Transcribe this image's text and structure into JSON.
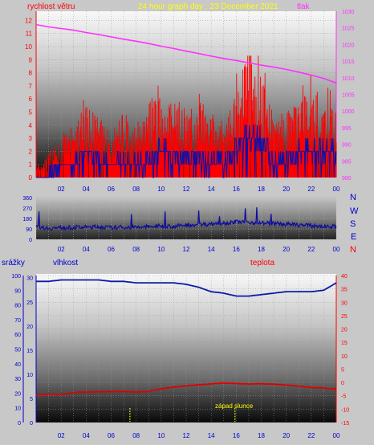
{
  "header": {
    "title": "24 hour graph day : 23 December 2021",
    "wind_label": "rychlost větru",
    "pressure_label": "tlak"
  },
  "middle": {
    "compass": [
      "N",
      "W",
      "S",
      "E",
      "N"
    ]
  },
  "bottom": {
    "rain_label": "srážky",
    "humidity_label": "vlhkost",
    "temp_label": "teplota",
    "sunset_label": "západ slunce"
  },
  "colors": {
    "wind": "#ff0000",
    "wind_avg": "#1010a8",
    "pressure": "#ff30ff",
    "direction": "#0c0ca0",
    "humidity": "#0c1aa8",
    "temperature": "#e00000",
    "marker": "#ffff00",
    "title": "#ffff00",
    "axis_text": "#0000cc"
  },
  "chart_data": [
    {
      "type": "line",
      "title": "24 hour graph day : 23 December 2021",
      "x_ticks": [
        "02",
        "04",
        "06",
        "08",
        "10",
        "12",
        "14",
        "16",
        "18",
        "20",
        "22",
        "00"
      ],
      "y_left": {
        "label": "rychlost větru",
        "ticks": [
          0,
          1,
          2,
          3,
          4,
          5,
          6,
          7,
          8,
          9,
          10,
          11,
          12
        ],
        "ylim": [
          0,
          12.7
        ]
      },
      "y_right": {
        "label": "tlak",
        "ticks": [
          980,
          985,
          990,
          995,
          1000,
          1005,
          1010,
          1015,
          1020,
          1025,
          1030
        ],
        "ylim": [
          980,
          1030
        ]
      },
      "x": [
        0,
        1,
        2,
        3,
        4,
        5,
        6,
        7,
        8,
        9,
        10,
        11,
        12,
        13,
        14,
        15,
        16,
        17,
        18,
        19,
        20,
        21,
        22,
        23,
        24
      ],
      "series": [
        {
          "name": "tlak",
          "axis": "right",
          "values": [
            1026,
            1025.3,
            1024.8,
            1024.3,
            1023.6,
            1023,
            1022.3,
            1021.6,
            1021,
            1020.3,
            1019.5,
            1018.8,
            1018,
            1017.3,
            1016.5,
            1015.8,
            1015.2,
            1014.5,
            1013.8,
            1013.2,
            1012.5,
            1011.7,
            1010.8,
            1009.8,
            1008.4
          ]
        },
        {
          "name": "rychlost větru",
          "axis": "left",
          "values": [
            0.6,
            1.4,
            2.2,
            2.6,
            4.3,
            3.6,
            2.2,
            3.3,
            2.7,
            3.7,
            5.0,
            4.2,
            3.4,
            4.3,
            3.6,
            3.1,
            5.2,
            8.5,
            6.2,
            3.3,
            3.2,
            4.4,
            5.3,
            4.8,
            4.1
          ]
        },
        {
          "name": "průměrná rychlost",
          "axis": "left",
          "values": [
            0.0,
            0.4,
            0.8,
            1.1,
            1.9,
            1.5,
            1.0,
            1.3,
            1.1,
            1.5,
            2.0,
            1.8,
            1.4,
            1.8,
            1.4,
            1.3,
            2.3,
            3.3,
            2.6,
            1.4,
            1.3,
            1.8,
            2.2,
            2.0,
            1.8
          ]
        }
      ]
    },
    {
      "type": "line",
      "x_ticks": [
        "02",
        "04",
        "06",
        "08",
        "10",
        "12",
        "14",
        "16",
        "18",
        "20",
        "22",
        "00"
      ],
      "y_left": {
        "ticks": [
          0,
          90,
          180,
          270,
          360
        ],
        "ylim": [
          0,
          360
        ]
      },
      "x": [
        0,
        1,
        2,
        3,
        4,
        5,
        6,
        7,
        8,
        9,
        10,
        11,
        12,
        13,
        14,
        15,
        16,
        17,
        18,
        19,
        20,
        21,
        22,
        23,
        24
      ],
      "series": [
        {
          "name": "směr větru",
          "values": [
            110,
            95,
            100,
            102,
            105,
            108,
            100,
            105,
            102,
            110,
            115,
            112,
            122,
            128,
            135,
            142,
            150,
            148,
            142,
            136,
            130,
            125,
            118,
            112,
            110
          ]
        }
      ]
    },
    {
      "type": "line",
      "x_ticks": [
        "02",
        "04",
        "06",
        "08",
        "10",
        "12",
        "14",
        "16",
        "18",
        "20",
        "22",
        "00"
      ],
      "y_rain": {
        "label": "srážky",
        "ticks": [
          0,
          5,
          10,
          15,
          20,
          25,
          30
        ]
      },
      "y_humidity": {
        "label": "vlhkost",
        "ticks": [
          0,
          10,
          20,
          30,
          40,
          50,
          60,
          70,
          80,
          90,
          100
        ],
        "ylim": [
          0,
          100
        ]
      },
      "y_temp": {
        "label": "teplota",
        "ticks": [
          -15,
          -10,
          -5,
          0,
          5,
          10,
          15,
          20,
          25,
          30,
          35,
          40
        ],
        "ylim": [
          -15,
          40
        ]
      },
      "x": [
        0,
        1,
        2,
        3,
        4,
        5,
        6,
        7,
        8,
        9,
        10,
        11,
        12,
        13,
        14,
        15,
        16,
        17,
        18,
        19,
        20,
        21,
        22,
        23,
        24
      ],
      "series": [
        {
          "name": "vlhkost",
          "axis": "humidity",
          "values": [
            96,
            96,
            97,
            97,
            97,
            97,
            96,
            96,
            95,
            95,
            95,
            95,
            94,
            92,
            89,
            88,
            86,
            86,
            87,
            88,
            89,
            89,
            89,
            90,
            95
          ]
        },
        {
          "name": "teplota",
          "axis": "temp",
          "values": [
            -4.6,
            -4.6,
            -4.5,
            -3.8,
            -3.6,
            -3.5,
            -3.4,
            -3.4,
            -3.6,
            -3.3,
            -2.4,
            -1.8,
            -1.3,
            -0.9,
            -0.5,
            -0.2,
            -0.4,
            -0.6,
            -0.5,
            -0.6,
            -1.0,
            -1.4,
            -1.9,
            -2.1,
            -2.5
          ]
        }
      ],
      "markers": [
        {
          "x": 7.5,
          "label": ""
        },
        {
          "x": 15.9,
          "label": "západ slunce"
        }
      ]
    }
  ]
}
